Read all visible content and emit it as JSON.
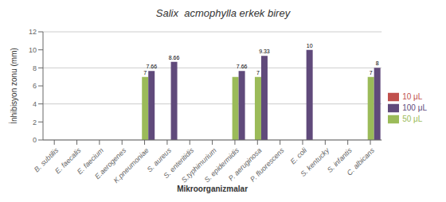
{
  "chart_data": {
    "type": "bar",
    "title": "Salix  acmophylla erkek birey",
    "xlabel": "Mikroorganizmalar",
    "ylabel": "İnhibisyon zonu (mm)",
    "categories": [
      "B. subtilis",
      "E. faecalis",
      "E. faecium",
      "E.aerogenes",
      "K.pneumoniae",
      "S. aureus",
      "S. enteritidis",
      "S.typhimurium",
      "S. epidermidis",
      "P. aeruginosa",
      "P. fluorescens",
      "E. coli",
      "S. kentucky",
      "S. infantis",
      "C. albicans"
    ],
    "series": [
      {
        "name": "10 μL",
        "color": "#c0504d",
        "values": [
          0,
          0,
          0,
          0,
          0,
          0,
          0,
          0,
          0,
          0,
          0,
          0,
          0,
          0,
          0
        ],
        "value_labels": [
          "0",
          "0",
          "0",
          "0",
          "0",
          "0",
          "0",
          "0",
          "0",
          "0",
          "0",
          "0",
          "0",
          "0",
          "0"
        ]
      },
      {
        "name": "50 μL",
        "color": "#9bbb59",
        "values": [
          0,
          0,
          0,
          0,
          7,
          0,
          0,
          0,
          7,
          7,
          0,
          0,
          0,
          0,
          7
        ],
        "value_labels": [
          "0",
          "0",
          "0",
          "0",
          "7",
          "0",
          "0",
          "0",
          null,
          "7",
          "0",
          "0",
          "0",
          "0",
          "7"
        ]
      },
      {
        "name": "100 μL",
        "color": "#604a7b",
        "values": [
          0,
          0,
          0,
          0,
          7.66,
          8.66,
          0,
          0,
          7.66,
          9.33,
          0,
          10,
          0,
          0,
          8
        ],
        "value_labels": [
          "0",
          "0",
          "0",
          "0",
          "7.66",
          "8.66",
          "0",
          "0",
          "7.66",
          "9.33",
          "0",
          "10",
          "0",
          "0",
          "8"
        ]
      }
    ],
    "ylim": [
      0,
      12
    ],
    "yticks": [
      0,
      2,
      4,
      6,
      8,
      10,
      12
    ],
    "grid": true,
    "legend": "right",
    "data_labels": true
  }
}
